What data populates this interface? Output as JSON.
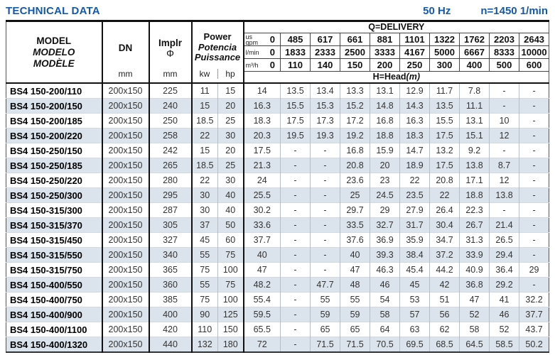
{
  "page": {
    "title": "TECHNICAL DATA",
    "frequency": "50 Hz",
    "speed": "n=1450 1/min"
  },
  "table": {
    "header": {
      "model_labels": [
        "MODEL",
        "MODELO",
        "MODÈLE"
      ],
      "dn_label": "DN",
      "dn_unit": "mm",
      "implr_label": "Implr",
      "implr_symbol": "Φ",
      "implr_unit": "mm",
      "power_labels": [
        "Power",
        "Potencia",
        "Puissance"
      ],
      "power_units": [
        "kw",
        "hp"
      ],
      "delivery_title": "Q=DELIVERY",
      "head_label": "H=Head",
      "head_unit": "(m)",
      "flow_rows": [
        {
          "unit_lines": [
            "us",
            "gpm"
          ],
          "zero": "0",
          "values": [
            "485",
            "617",
            "661",
            "881",
            "1101",
            "1322",
            "1762",
            "2203",
            "2643"
          ]
        },
        {
          "unit_lines": [
            "l/min"
          ],
          "zero": "0",
          "values": [
            "1833",
            "2333",
            "2500",
            "3333",
            "4167",
            "5000",
            "6667",
            "8333",
            "10000"
          ]
        },
        {
          "unit_lines": [
            "m³/h"
          ],
          "zero": "0",
          "values": [
            "110",
            "140",
            "150",
            "200",
            "250",
            "300",
            "400",
            "500",
            "600"
          ]
        }
      ]
    },
    "rows": [
      {
        "model": "BS4 150-200/110",
        "dn": "200x150",
        "implr": "225",
        "kw": "11",
        "hp": "15",
        "head": [
          "14",
          "13.5",
          "13.4",
          "13.3",
          "13.1",
          "12.9",
          "11.7",
          "7.8",
          "-",
          "-"
        ]
      },
      {
        "model": "BS4 150-200/150",
        "dn": "200x150",
        "implr": "240",
        "kw": "15",
        "hp": "20",
        "head": [
          "16.3",
          "15.5",
          "15.3",
          "15.2",
          "14.8",
          "14.3",
          "13.5",
          "11.1",
          "-",
          "-"
        ]
      },
      {
        "model": "BS4 150-200/185",
        "dn": "200x150",
        "implr": "250",
        "kw": "18.5",
        "hp": "25",
        "head": [
          "18.3",
          "17.5",
          "17.3",
          "17.2",
          "16.8",
          "16.3",
          "15.5",
          "13.1",
          "10",
          "-"
        ]
      },
      {
        "model": "BS4 150-200/220",
        "dn": "200x150",
        "implr": "258",
        "kw": "22",
        "hp": "30",
        "head": [
          "20.3",
          "19.5",
          "19.3",
          "19.2",
          "18.8",
          "18.3",
          "17.5",
          "15.1",
          "12",
          "-"
        ]
      },
      {
        "model": "BS4 150-250/150",
        "dn": "200x150",
        "implr": "242",
        "kw": "15",
        "hp": "20",
        "head": [
          "17.5",
          "-",
          "-",
          "16.8",
          "15.9",
          "14.7",
          "13.2",
          "9.2",
          "-",
          "-"
        ]
      },
      {
        "model": "BS4 150-250/185",
        "dn": "200x150",
        "implr": "265",
        "kw": "18.5",
        "hp": "25",
        "head": [
          "21.3",
          "-",
          "-",
          "20.8",
          "20",
          "18.9",
          "17.5",
          "13.8",
          "8.7",
          "-"
        ]
      },
      {
        "model": "BS4 150-250/220",
        "dn": "200x150",
        "implr": "280",
        "kw": "22",
        "hp": "30",
        "head": [
          "24",
          "-",
          "-",
          "23.6",
          "23",
          "22",
          "20.8",
          "17.1",
          "12",
          "-"
        ]
      },
      {
        "model": "BS4 150-250/300",
        "dn": "200x150",
        "implr": "295",
        "kw": "30",
        "hp": "40",
        "head": [
          "25.5",
          "-",
          "-",
          "25",
          "24.5",
          "23.5",
          "22",
          "18.8",
          "13.8",
          "-"
        ]
      },
      {
        "model": "BS4 150-315/300",
        "dn": "200x150",
        "implr": "287",
        "kw": "30",
        "hp": "40",
        "head": [
          "30.2",
          "-",
          "-",
          "29.7",
          "29",
          "27.9",
          "26.4",
          "22.3",
          "-",
          "-"
        ]
      },
      {
        "model": "BS4 150-315/370",
        "dn": "200x150",
        "implr": "305",
        "kw": "37",
        "hp": "50",
        "head": [
          "33.6",
          "-",
          "-",
          "33.5",
          "32.7",
          "31.7",
          "30.4",
          "26.7",
          "21.4",
          "-"
        ]
      },
      {
        "model": "BS4 150-315/450",
        "dn": "200x150",
        "implr": "327",
        "kw": "45",
        "hp": "60",
        "head": [
          "37.7",
          "-",
          "-",
          "37.6",
          "36.9",
          "35.9",
          "34.7",
          "31.3",
          "26.5",
          "-"
        ]
      },
      {
        "model": "BS4 150-315/550",
        "dn": "200x150",
        "implr": "340",
        "kw": "55",
        "hp": "75",
        "head": [
          "40",
          "-",
          "-",
          "40",
          "39.3",
          "38.4",
          "37.2",
          "33.9",
          "29.4",
          "-"
        ]
      },
      {
        "model": "BS4 150-315/750",
        "dn": "200x150",
        "implr": "365",
        "kw": "75",
        "hp": "100",
        "head": [
          "47",
          "-",
          "-",
          "47",
          "46.3",
          "45.4",
          "44.2",
          "40.9",
          "36.4",
          "29"
        ]
      },
      {
        "model": "BS4 150-400/550",
        "dn": "200x150",
        "implr": "360",
        "kw": "55",
        "hp": "75",
        "head": [
          "48.2",
          "-",
          "47.7",
          "48",
          "46",
          "45",
          "42",
          "36.8",
          "29.2",
          "-"
        ]
      },
      {
        "model": "BS4 150-400/750",
        "dn": "200x150",
        "implr": "385",
        "kw": "75",
        "hp": "100",
        "head": [
          "55.4",
          "-",
          "55",
          "55",
          "54",
          "53",
          "51",
          "47",
          "41",
          "32.2"
        ]
      },
      {
        "model": "BS4 150-400/900",
        "dn": "200x150",
        "implr": "400",
        "kw": "90",
        "hp": "125",
        "head": [
          "59.5",
          "-",
          "59",
          "59",
          "58",
          "57",
          "56",
          "52",
          "46",
          "37.7"
        ]
      },
      {
        "model": "BS4 150-400/1100",
        "dn": "200x150",
        "implr": "420",
        "kw": "110",
        "hp": "150",
        "head": [
          "65.5",
          "-",
          "65",
          "65",
          "64",
          "63",
          "62",
          "58",
          "52",
          "43.7"
        ]
      },
      {
        "model": "BS4 150-400/1320",
        "dn": "200x150",
        "implr": "440",
        "kw": "132",
        "hp": "180",
        "head": [
          "72",
          "-",
          "71.5",
          "71.5",
          "70.5",
          "69.5",
          "68.5",
          "64.5",
          "58.5",
          "50.2"
        ]
      }
    ]
  }
}
